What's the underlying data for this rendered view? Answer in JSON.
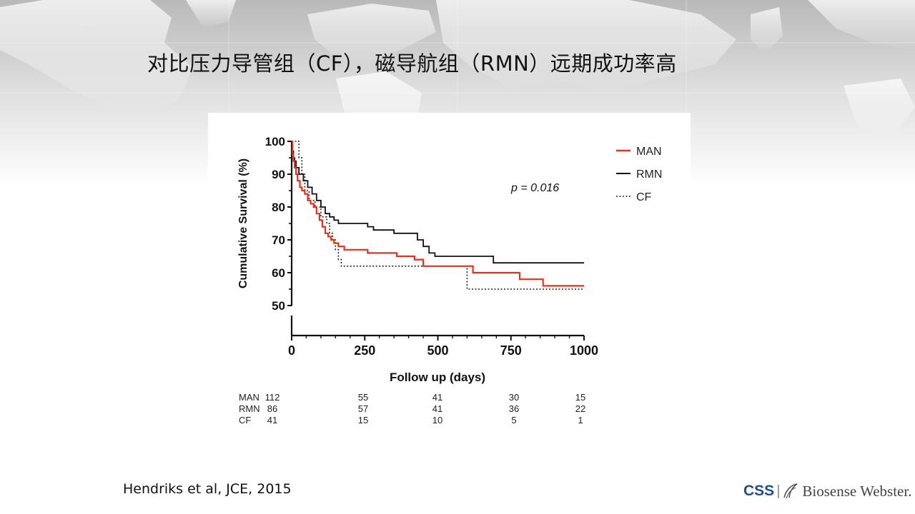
{
  "slide": {
    "title": "对比压力导管组（CF），磁导航组（RMN）远期成功率高",
    "citation": "Hendriks et al, JCE, 2015"
  },
  "logo": {
    "left": "CSS",
    "separator": "|",
    "right": "Biosense Webster."
  },
  "colors": {
    "MAN": "#e8301c",
    "RMN": "#111111",
    "CF": "#222222",
    "logo_blue": "#1f4e8c"
  },
  "chart_data": {
    "type": "line",
    "step": true,
    "xlabel": "Follow up (days)",
    "ylabel": "Cumulative Survival (%)",
    "xlim": [
      0,
      1000
    ],
    "ylim": [
      50,
      100
    ],
    "y_axis_break": true,
    "xticks": [
      0,
      250,
      500,
      750,
      1000
    ],
    "yticks": [
      50,
      60,
      70,
      80,
      90,
      100
    ],
    "annotation": "p = 0.016",
    "legend_position": "top-right",
    "series": [
      {
        "name": "MAN",
        "line_style": "solid",
        "x": [
          0,
          3,
          6,
          10,
          15,
          20,
          28,
          35,
          45,
          55,
          65,
          75,
          85,
          95,
          105,
          115,
          125,
          135,
          145,
          160,
          180,
          200,
          260,
          300,
          360,
          380,
          420,
          450,
          560,
          620,
          700,
          780,
          860,
          1000
        ],
        "y": [
          100,
          96,
          94,
          92,
          90,
          88,
          86,
          85,
          84,
          82,
          81,
          80,
          78,
          76,
          74,
          72,
          71,
          70,
          69,
          68,
          67,
          67,
          66,
          66,
          65,
          65,
          64,
          62,
          62,
          60,
          60,
          58,
          56,
          56
        ]
      },
      {
        "name": "RMN",
        "line_style": "solid",
        "x": [
          0,
          3,
          6,
          10,
          15,
          25,
          40,
          55,
          70,
          85,
          100,
          115,
          130,
          145,
          160,
          180,
          220,
          260,
          280,
          350,
          400,
          430,
          450,
          470,
          490,
          690,
          1000
        ],
        "y": [
          100,
          97,
          95,
          94,
          92,
          90,
          88,
          86,
          84,
          82,
          80,
          78,
          77,
          76,
          75,
          75,
          75,
          74,
          73,
          72,
          72,
          70,
          68,
          66,
          65,
          63,
          63
        ]
      },
      {
        "name": "CF",
        "line_style": "dotted",
        "x": [
          0,
          20,
          25,
          35,
          45,
          60,
          80,
          100,
          120,
          130,
          140,
          150,
          160,
          170,
          200,
          590,
          600,
          1000
        ],
        "y": [
          100,
          100,
          95,
          90,
          85,
          82,
          80,
          77,
          75,
          72,
          70,
          67,
          64,
          62,
          62,
          62,
          55,
          55
        ]
      }
    ],
    "risk_table": {
      "rows": [
        {
          "label": "MAN",
          "values": [
            112,
            55,
            41,
            30,
            15
          ]
        },
        {
          "label": "RMN",
          "values": [
            86,
            57,
            41,
            36,
            22
          ]
        },
        {
          "label": "CF",
          "values": [
            41,
            15,
            10,
            5,
            1
          ]
        }
      ]
    }
  }
}
